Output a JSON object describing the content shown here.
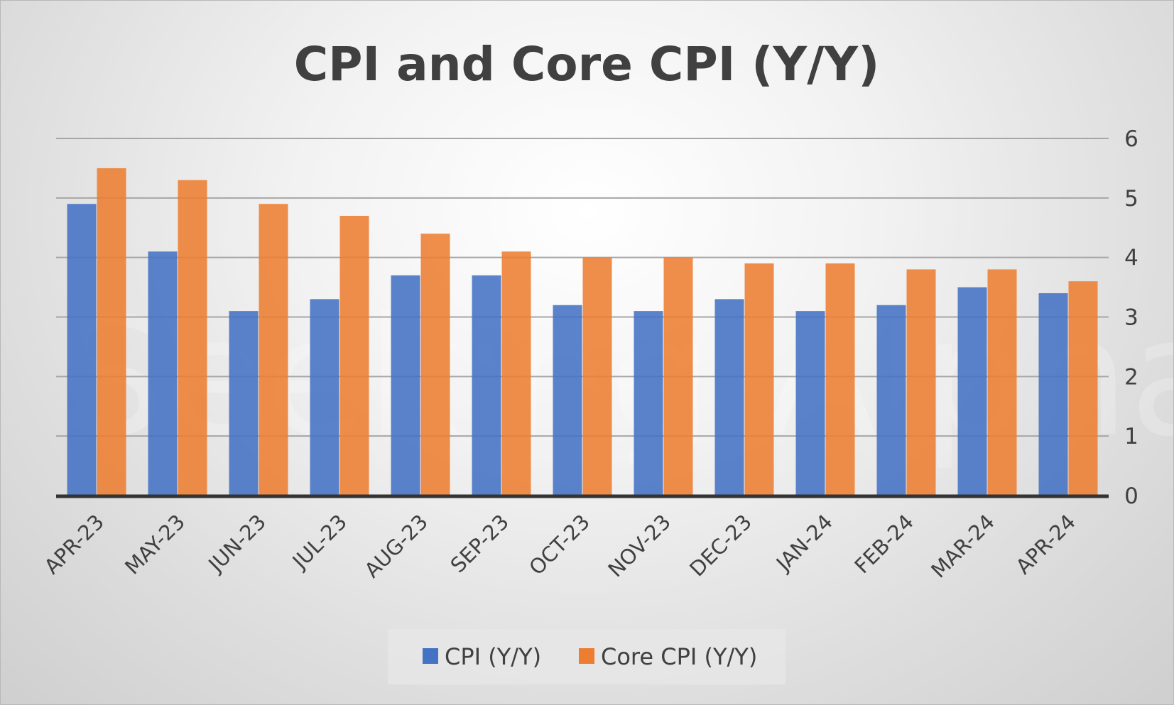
{
  "chart_data": {
    "type": "bar",
    "title": "CPI and Core CPI (Y/Y)",
    "categories": [
      "APR-23",
      "MAY-23",
      "JUN-23",
      "JUL-23",
      "AUG-23",
      "SEP-23",
      "OCT-23",
      "NOV-23",
      "DEC-23",
      "JAN-24",
      "FEB-24",
      "MAR-24",
      "APR-24"
    ],
    "series": [
      {
        "name": "CPI (Y/Y)",
        "color": "#4472c4",
        "values": [
          4.9,
          4.1,
          3.1,
          3.3,
          3.7,
          3.7,
          3.2,
          3.1,
          3.3,
          3.1,
          3.2,
          3.5,
          3.4
        ]
      },
      {
        "name": "Core CPI (Y/Y)",
        "color": "#ed7d31",
        "values": [
          5.5,
          5.3,
          4.9,
          4.7,
          4.4,
          4.1,
          4.0,
          4.0,
          3.9,
          3.9,
          3.8,
          3.8,
          3.6
        ]
      }
    ],
    "ylim": [
      0,
      6
    ],
    "yticks": [
      0,
      1,
      2,
      3,
      4,
      5,
      6
    ],
    "y_axis_side": "right",
    "grid": true,
    "legend_position": "bottom",
    "watermark": "Seeking Alpha"
  }
}
